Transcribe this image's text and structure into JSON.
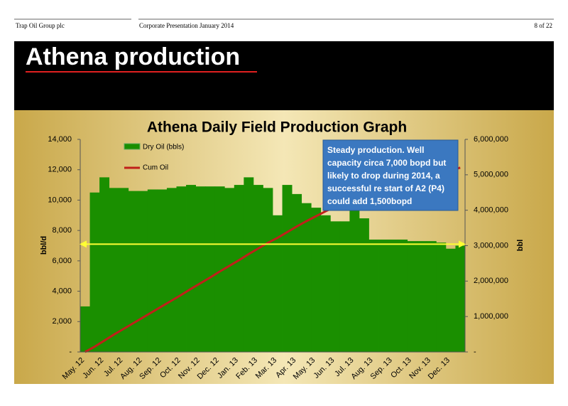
{
  "header": {
    "company": "Trap Oil Group plc",
    "presentation": "Corporate Presentation January 2014",
    "page": "8 of 22"
  },
  "slide_title": "Athena production",
  "chart_data": {
    "type": "bar",
    "title": "Athena Daily Field Production Graph",
    "y_label": "bbl/d",
    "y2_label": "bbl",
    "categories": [
      "May. 12",
      null,
      "Jun. 12",
      null,
      "Jul. 12",
      null,
      "Aug. 12",
      null,
      "Sep. 12",
      null,
      "Oct. 12",
      null,
      "Nov. 12",
      null,
      "Dec. 12",
      null,
      "Jan. 13",
      null,
      "Feb. 13",
      null,
      "Mar. 13",
      null,
      "Apr. 13",
      null,
      "May. 13",
      null,
      "Jun. 13",
      null,
      "Jul. 13",
      null,
      "Aug. 13",
      null,
      "Sep. 13",
      null,
      "Oct. 13",
      null,
      "Nov. 13",
      null,
      "Dec. 13",
      null
    ],
    "series": [
      {
        "name": "Dry Oil  (bbls)",
        "type": "bar",
        "color": "#1a8f00",
        "values": [
          3000,
          10500,
          11500,
          10800,
          10800,
          10600,
          10600,
          10700,
          10700,
          10800,
          10900,
          11000,
          10900,
          10900,
          10900,
          10800,
          11000,
          11500,
          11000,
          10800,
          9000,
          11000,
          10400,
          9800,
          9500,
          9000,
          8600,
          8600,
          9400,
          8800,
          7400,
          7400,
          7400,
          7400,
          7300,
          7300,
          7300,
          7200,
          6800,
          7000
        ]
      },
      {
        "name": "Cum Oil",
        "type": "line",
        "axis": "y2",
        "color": "#c0201a",
        "values": [
          0,
          150000,
          320000,
          490000,
          650000,
          810000,
          970000,
          1130000,
          1290000,
          1450000,
          1610000,
          1780000,
          1940000,
          2100000,
          2270000,
          2430000,
          2590000,
          2760000,
          2920000,
          3080000,
          3220000,
          3380000,
          3540000,
          3690000,
          3830000,
          3970000,
          4100000,
          4230000,
          4370000,
          4500000,
          4570000,
          4640000,
          4710000,
          4780000,
          4850000,
          4920000,
          4990000,
          5060000,
          5130000,
          5200000
        ]
      }
    ],
    "ylim": [
      0,
      14000
    ],
    "yticks": [
      {
        "value": 0,
        "label": "-"
      },
      {
        "value": 2000,
        "label": "2,000"
      },
      {
        "value": 4000,
        "label": "4,000"
      },
      {
        "value": 6000,
        "label": "6,000"
      },
      {
        "value": 8000,
        "label": "8,000"
      },
      {
        "value": 10000,
        "label": "10,000"
      },
      {
        "value": 12000,
        "label": "12,000"
      },
      {
        "value": 14000,
        "label": "14,000"
      }
    ],
    "y2lim": [
      0,
      6000000
    ],
    "y2ticks": [
      {
        "value": 0,
        "label": "-"
      },
      {
        "value": 1000000,
        "label": "1,000,000"
      },
      {
        "value": 2000000,
        "label": "2,000,000"
      },
      {
        "value": 3000000,
        "label": "3,000,000"
      },
      {
        "value": 4000000,
        "label": "4,000,000"
      },
      {
        "value": 5000000,
        "label": "5,000,000"
      },
      {
        "value": 6000000,
        "label": "6,000,000"
      }
    ],
    "reference_line": {
      "value": 7100,
      "color": "#ffff33"
    },
    "annotation": [
      "Steady production.  Well",
      "capacity circa 7,000 bopd but",
      "likely to drop during 2014, a",
      "successful re start of A2 (P4)",
      "could add 1,500bopd"
    ]
  }
}
